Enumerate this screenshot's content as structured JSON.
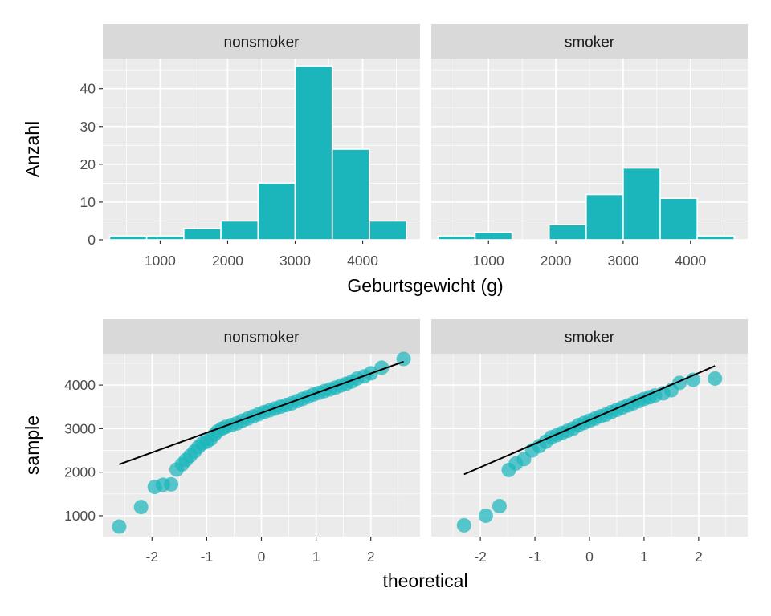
{
  "colors": {
    "fill": "#1bb6bb",
    "panel_bg": "#ebebeb",
    "strip_bg": "#d9d9d9",
    "grid": "#ffffff",
    "line": "#000000"
  },
  "chart_data": [
    {
      "type": "bar",
      "subtype": "histogram",
      "xlabel": "Geburtsgewicht (g)",
      "ylabel": "Anzahl",
      "x_ticks": [
        1000,
        2000,
        3000,
        4000
      ],
      "y_ticks": [
        0,
        10,
        20,
        30,
        40
      ],
      "xlim": [
        150,
        4850
      ],
      "ylim": [
        0,
        48
      ],
      "bin_edges": [
        250,
        800,
        1350,
        1900,
        2450,
        3000,
        3550,
        4100,
        4650
      ],
      "grid": true,
      "facets": [
        {
          "label": "nonsmoker",
          "counts": [
            1,
            1,
            3,
            5,
            15,
            46,
            24,
            5
          ]
        },
        {
          "label": "smoker",
          "counts": [
            1,
            2,
            0,
            4,
            12,
            19,
            11,
            1
          ]
        }
      ]
    },
    {
      "type": "scatter",
      "subtype": "qq-plot",
      "xlabel": "theoretical",
      "ylabel": "sample",
      "x_ticks": [
        -2,
        -1,
        0,
        1,
        2
      ],
      "y_ticks": [
        1000,
        2000,
        3000,
        4000
      ],
      "xlim": [
        -2.9,
        2.9
      ],
      "ylim": [
        520,
        4720
      ],
      "grid": true,
      "facets": [
        {
          "label": "nonsmoker",
          "line": {
            "x": [
              -2.6,
              2.6
            ],
            "y": [
              2180,
              4540
            ]
          },
          "points": [
            [
              -2.6,
              750
            ],
            [
              -2.2,
              1200
            ],
            [
              -1.95,
              1660
            ],
            [
              -1.8,
              1710
            ],
            [
              -1.65,
              1720
            ],
            [
              -1.55,
              2060
            ],
            [
              -1.45,
              2180
            ],
            [
              -1.38,
              2280
            ],
            [
              -1.3,
              2380
            ],
            [
              -1.22,
              2480
            ],
            [
              -1.15,
              2580
            ],
            [
              -1.08,
              2660
            ],
            [
              -1.0,
              2700
            ],
            [
              -0.93,
              2760
            ],
            [
              -0.86,
              2860
            ],
            [
              -0.8,
              2940
            ],
            [
              -0.72,
              3000
            ],
            [
              -0.65,
              3040
            ],
            [
              -0.55,
              3080
            ],
            [
              -0.45,
              3120
            ],
            [
              -0.35,
              3180
            ],
            [
              -0.25,
              3230
            ],
            [
              -0.15,
              3280
            ],
            [
              -0.05,
              3330
            ],
            [
              0.05,
              3380
            ],
            [
              0.15,
              3420
            ],
            [
              0.25,
              3460
            ],
            [
              0.35,
              3500
            ],
            [
              0.45,
              3540
            ],
            [
              0.55,
              3580
            ],
            [
              0.65,
              3630
            ],
            [
              0.75,
              3680
            ],
            [
              0.85,
              3730
            ],
            [
              0.95,
              3780
            ],
            [
              1.05,
              3820
            ],
            [
              1.15,
              3860
            ],
            [
              1.25,
              3900
            ],
            [
              1.35,
              3940
            ],
            [
              1.45,
              3990
            ],
            [
              1.55,
              4030
            ],
            [
              1.65,
              4080
            ],
            [
              1.75,
              4150
            ],
            [
              1.88,
              4200
            ],
            [
              2.0,
              4270
            ],
            [
              2.2,
              4400
            ],
            [
              2.6,
              4600
            ]
          ]
        },
        {
          "label": "smoker",
          "line": {
            "x": [
              -2.3,
              2.3
            ],
            "y": [
              1950,
              4440
            ]
          },
          "points": [
            [
              -2.3,
              780
            ],
            [
              -1.9,
              1000
            ],
            [
              -1.65,
              1220
            ],
            [
              -1.48,
              2050
            ],
            [
              -1.35,
              2200
            ],
            [
              -1.2,
              2300
            ],
            [
              -1.05,
              2500
            ],
            [
              -0.92,
              2600
            ],
            [
              -0.8,
              2700
            ],
            [
              -0.7,
              2800
            ],
            [
              -0.6,
              2850
            ],
            [
              -0.5,
              2900
            ],
            [
              -0.4,
              2950
            ],
            [
              -0.3,
              3000
            ],
            [
              -0.2,
              3080
            ],
            [
              -0.1,
              3130
            ],
            [
              0.0,
              3180
            ],
            [
              0.1,
              3230
            ],
            [
              0.2,
              3280
            ],
            [
              0.3,
              3320
            ],
            [
              0.4,
              3380
            ],
            [
              0.5,
              3430
            ],
            [
              0.6,
              3480
            ],
            [
              0.7,
              3530
            ],
            [
              0.8,
              3580
            ],
            [
              0.9,
              3630
            ],
            [
              1.0,
              3680
            ],
            [
              1.1,
              3720
            ],
            [
              1.2,
              3760
            ],
            [
              1.35,
              3810
            ],
            [
              1.5,
              3880
            ],
            [
              1.65,
              4050
            ],
            [
              1.9,
              4120
            ],
            [
              2.3,
              4150
            ]
          ]
        }
      ]
    }
  ]
}
